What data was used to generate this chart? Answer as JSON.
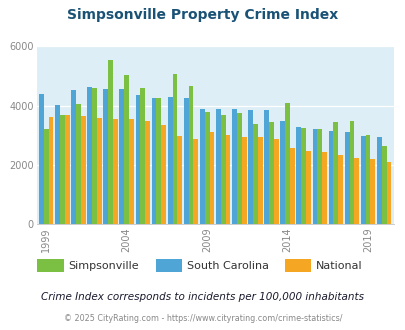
{
  "title": "Simpsonville Property Crime Index",
  "years": [
    1999,
    2000,
    2001,
    2002,
    2003,
    2004,
    2005,
    2006,
    2007,
    2008,
    2009,
    2010,
    2011,
    2012,
    2013,
    2014,
    2015,
    2016,
    2017,
    2018,
    2019,
    2020
  ],
  "simpsonville": [
    3200,
    3700,
    4050,
    4600,
    5550,
    5020,
    4600,
    4260,
    5080,
    4650,
    3800,
    3700,
    3750,
    3380,
    3450,
    4100,
    3250,
    3200,
    3450,
    3480,
    3020,
    2650
  ],
  "south_carolina": [
    4400,
    4010,
    4510,
    4620,
    4550,
    4570,
    4350,
    4250,
    4280,
    4260,
    3900,
    3870,
    3900,
    3840,
    3840,
    3480,
    3270,
    3220,
    3130,
    3100,
    2960,
    2930
  ],
  "national": [
    3620,
    3680,
    3650,
    3590,
    3550,
    3540,
    3490,
    3330,
    2960,
    2890,
    3100,
    3000,
    2940,
    2930,
    2870,
    2580,
    2470,
    2440,
    2340,
    2230,
    2200,
    2100
  ],
  "sc_color": "#4fa5d5",
  "simpsonville_color": "#7bc043",
  "national_color": "#f5a623",
  "bg_color": "#ddeef6",
  "title_color": "#1a5276",
  "subtitle_color": "#1a1a2e",
  "footer_color": "#888888",
  "subtitle": "Crime Index corresponds to incidents per 100,000 inhabitants",
  "footer": "© 2025 CityRating.com - https://www.cityrating.com/crime-statistics/",
  "ylim": [
    0,
    6000
  ],
  "yticks": [
    0,
    2000,
    4000,
    6000
  ],
  "tick_years": [
    1999,
    2004,
    2009,
    2014,
    2019
  ],
  "legend_labels": [
    "Simpsonville",
    "South Carolina",
    "National"
  ]
}
